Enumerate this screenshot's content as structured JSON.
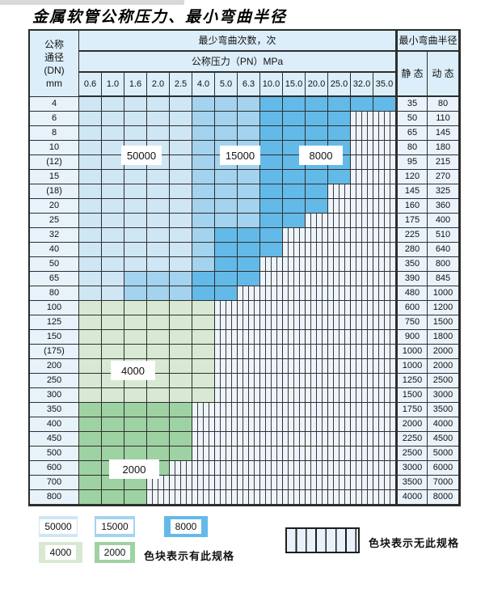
{
  "title": "金属软管公称压力、最小弯曲半径",
  "table": {
    "dn_header": [
      "公称",
      "通径",
      "(DN)",
      "mm"
    ],
    "bend_header": "最少弯曲次数，次",
    "pressure_header": "公称压力（PN）MPa",
    "radius_header": "最小弯曲半径",
    "static_header": "静 态",
    "dynamic_header": "动 态"
  },
  "overlays": {
    "b50000": "50000",
    "b15000": "15000",
    "b8000": "8000",
    "g4000": "4000",
    "g2000": "2000"
  },
  "legend": {
    "items": [
      {
        "label": "50000",
        "color": "#cfe6f5"
      },
      {
        "label": "15000",
        "color": "#a3d3ee"
      },
      {
        "label": "8000",
        "color": "#63bae8"
      },
      {
        "label": "4000",
        "color": "#d7e9d2"
      },
      {
        "label": "2000",
        "color": "#9ed2a3"
      }
    ],
    "has_spec_text": "色块表示有此规格",
    "no_spec_text": "色块表示无此规格"
  },
  "colors": {
    "cycles_50000": "#cfe6f5",
    "cycles_15000": "#a3d3ee",
    "cycles_8000": "#63bae8",
    "cycles_4000": "#d7e9d2",
    "cycles_2000": "#9ed2a3",
    "no_spec_bg": "#eef4fb",
    "header_bg": "#dceef9",
    "grid_border": "#2e2e2e"
  },
  "chart_data": {
    "type": "heatmap",
    "title": "金属软管公称压力、最小弯曲半径",
    "x_label": "公称压力（PN）MPa",
    "y_label": "公称通径(DN) mm",
    "value_label": "最少弯曲次数，次",
    "extra_columns": [
      "静 态",
      "动 态"
    ],
    "extra_columns_group": "最小弯曲半径",
    "columns": [
      "0.6",
      "1.0",
      "1.6",
      "2.0",
      "2.5",
      "4.0",
      "5.0",
      "6.3",
      "10.0",
      "15.0",
      "20.0",
      "25.0",
      "32.0",
      "35.0"
    ],
    "cell_code_legend": {
      "L": 50000,
      "M": 15000,
      "D": 8000,
      "g": 4000,
      "G": 2000,
      ".": "无此规格"
    },
    "rows": [
      {
        "dn": "4",
        "cells": "LLLLLMMMDDDDDD",
        "static": 35,
        "dynamic": 80
      },
      {
        "dn": "6",
        "cells": "LLLLLMMMDDDD..",
        "static": 50,
        "dynamic": 110
      },
      {
        "dn": "8",
        "cells": "LLLLLMMMDDDD..",
        "static": 65,
        "dynamic": 145
      },
      {
        "dn": "10",
        "cells": "LLLLLMMMDDDD..",
        "static": 80,
        "dynamic": 180
      },
      {
        "dn": "(12)",
        "cells": "LLLLLMMMDDDD..",
        "static": 95,
        "dynamic": 215
      },
      {
        "dn": "15",
        "cells": "LLLLLMMMDDDD..",
        "static": 120,
        "dynamic": 270
      },
      {
        "dn": "(18)",
        "cells": "LLLLLMMMDDD...",
        "static": 145,
        "dynamic": 325
      },
      {
        "dn": "20",
        "cells": "LLLLLMMMDDD...",
        "static": 160,
        "dynamic": 360
      },
      {
        "dn": "25",
        "cells": "LLLLLMMMDD....",
        "static": 175,
        "dynamic": 400
      },
      {
        "dn": "32",
        "cells": "LLLLLMDDD.....",
        "static": 225,
        "dynamic": 510
      },
      {
        "dn": "40",
        "cells": "LLLLLMDDD.....",
        "static": 280,
        "dynamic": 640
      },
      {
        "dn": "50",
        "cells": "LLLLLMDD......",
        "static": 350,
        "dynamic": 800
      },
      {
        "dn": "65",
        "cells": "LLMMMDDD......",
        "static": 390,
        "dynamic": 845
      },
      {
        "dn": "80",
        "cells": "LLMMMDD.......",
        "static": 480,
        "dynamic": 1000
      },
      {
        "dn": "100",
        "cells": "gggggg........",
        "static": 600,
        "dynamic": 1200
      },
      {
        "dn": "125",
        "cells": "gggggg........",
        "static": 750,
        "dynamic": 1500
      },
      {
        "dn": "150",
        "cells": "gggggg........",
        "static": 900,
        "dynamic": 1800
      },
      {
        "dn": "(175)",
        "cells": "gggggg........",
        "static": 1000,
        "dynamic": 2000
      },
      {
        "dn": "200",
        "cells": "gggggg........",
        "static": 1000,
        "dynamic": 2000
      },
      {
        "dn": "250",
        "cells": "gggggg........",
        "static": 1250,
        "dynamic": 2500
      },
      {
        "dn": "300",
        "cells": "gggggg........",
        "static": 1500,
        "dynamic": 3000
      },
      {
        "dn": "350",
        "cells": "GGGGG.........",
        "static": 1750,
        "dynamic": 3500
      },
      {
        "dn": "400",
        "cells": "GGGGG.........",
        "static": 2000,
        "dynamic": 4000
      },
      {
        "dn": "450",
        "cells": "GGGGG.........",
        "static": 2250,
        "dynamic": 4500
      },
      {
        "dn": "500",
        "cells": "GGGGG.........",
        "static": 2500,
        "dynamic": 5000
      },
      {
        "dn": "600",
        "cells": "GGGG..........",
        "static": 3000,
        "dynamic": 6000
      },
      {
        "dn": "700",
        "cells": "GGG...........",
        "static": 3500,
        "dynamic": 7000
      },
      {
        "dn": "800",
        "cells": "GGG...........",
        "static": 4000,
        "dynamic": 8000
      }
    ],
    "legend_position": "bottom",
    "grid": true
  }
}
